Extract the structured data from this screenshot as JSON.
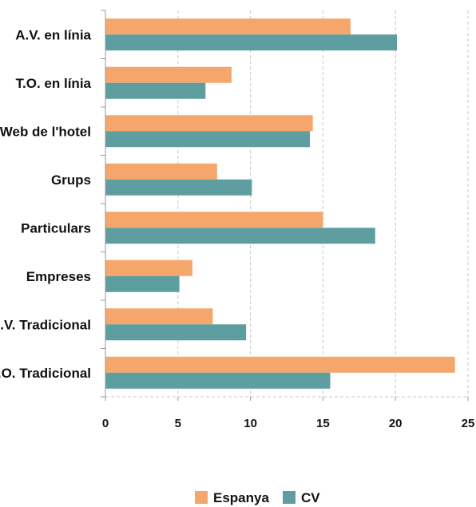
{
  "chart_data": {
    "type": "bar",
    "orientation": "horizontal",
    "categories": [
      "A.V. en línia",
      "T.O. en línia",
      "Web de l'hotel",
      "Grups",
      "Particulars",
      "Empreses",
      "A.V. Tradicional",
      "T.O. Tradicional"
    ],
    "series": [
      {
        "name": "Espanya",
        "color": "#f5a66b",
        "values": [
          16.9,
          8.7,
          14.3,
          7.7,
          15.0,
          6.0,
          7.4,
          24.1
        ]
      },
      {
        "name": "CV",
        "color": "#5f9ea0",
        "values": [
          20.1,
          6.9,
          14.1,
          10.1,
          18.6,
          5.1,
          9.7,
          15.5
        ]
      }
    ],
    "xlim": [
      0,
      25
    ],
    "xticks": [
      "0",
      "5",
      "10",
      "15",
      "20",
      "25"
    ],
    "grid": "vertical dashed",
    "legend": "bottom-center"
  }
}
